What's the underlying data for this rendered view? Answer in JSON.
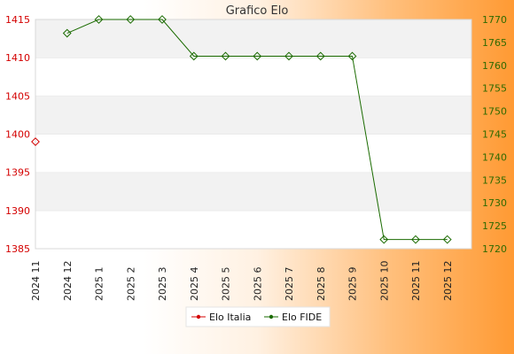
{
  "chart_data": {
    "type": "line",
    "title": "Grafico Elo",
    "categories": [
      "2024 11",
      "2024 12",
      "2025 1",
      "2025 2",
      "2025 3",
      "2025 4",
      "2025 5",
      "2025 6",
      "2025 7",
      "2025 8",
      "2025 9",
      "2025 10",
      "2025 11",
      "2025 12"
    ],
    "y_left": {
      "ticks": [
        1385,
        1390,
        1395,
        1400,
        1405,
        1410,
        1415
      ],
      "ylim": [
        1385,
        1415
      ],
      "color": "#d40000"
    },
    "y_right": {
      "ticks": [
        1720,
        1725,
        1730,
        1735,
        1740,
        1745,
        1750,
        1755,
        1760,
        1765,
        1770
      ],
      "ylim": [
        1720,
        1770
      ],
      "color": "#2f6a00"
    },
    "series": [
      {
        "name": "Elo Italia",
        "axis": "left",
        "color": "#d40000",
        "values": [
          1399,
          null,
          null,
          null,
          null,
          null,
          null,
          null,
          null,
          null,
          null,
          null,
          null,
          null
        ]
      },
      {
        "name": "Elo FIDE",
        "axis": "right",
        "color": "#1a6b00",
        "values": [
          null,
          1767,
          1770,
          1770,
          1770,
          1762,
          1762,
          1762,
          1762,
          1762,
          1762,
          1722,
          1722,
          1722
        ]
      }
    ],
    "grid": true,
    "legend_position": "bottom-center"
  }
}
